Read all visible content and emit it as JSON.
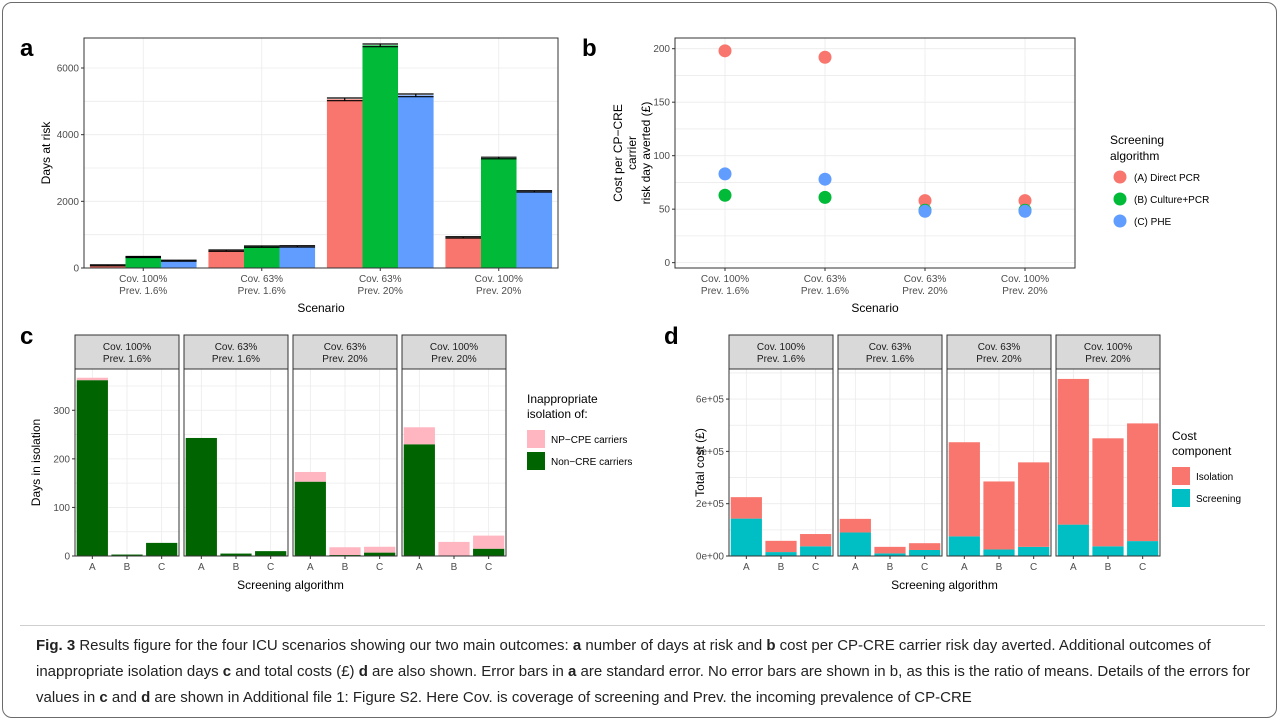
{
  "figure": {
    "caption": {
      "label": "Fig. 3",
      "text": "Results figure for the four ICU scenarios showing our two main outcomes: a number of days at risk and b cost per CP-CRE carrier risk day averted. Additional outcomes of inappropriate isolation days c and total costs (£) d are also shown. Error bars in a are standard error. No error bars are shown in b, as this is the ratio of means. Details of the errors for values in c and d are shown in Additional file 1: Figure S2. Here Cov. is coverage of screening and Prev. the incoming prevalence of CP-CRE"
    }
  },
  "colors": {
    "A": "#F8766D",
    "B": "#00BA38",
    "C": "#619CFF",
    "np_cpe": "#FFB6C1",
    "non_cre": "#006400",
    "isolation": "#F8766D",
    "screening": "#00BFC4",
    "grid": "#EBEBEB",
    "strip": "#D9D9D9"
  },
  "chart_data": [
    {
      "panel": "a",
      "type": "bar",
      "xlabel": "Scenario",
      "ylabel": "Days at risk",
      "ylim": [
        0,
        6900
      ],
      "yticks": [
        0,
        2000,
        4000,
        6000
      ],
      "categories": [
        [
          "Cov. 100%",
          "Prev. 1.6%"
        ],
        [
          "Cov. 63%",
          "Prev. 1.6%"
        ],
        [
          "Cov. 63%",
          "Prev. 20%"
        ],
        [
          "Cov. 100%",
          "Prev. 20%"
        ]
      ],
      "series": [
        {
          "key": "A",
          "values": [
            80,
            520,
            5060,
            920
          ],
          "err": [
            15,
            20,
            40,
            20
          ]
        },
        {
          "key": "B",
          "values": [
            330,
            640,
            6680,
            3300
          ],
          "err": [
            15,
            20,
            40,
            25
          ]
        },
        {
          "key": "C",
          "values": [
            220,
            650,
            5180,
            2300
          ],
          "err": [
            15,
            20,
            40,
            20
          ]
        }
      ]
    },
    {
      "panel": "b",
      "type": "scatter",
      "xlabel": "Scenario",
      "ylabel": [
        "Cost per CP−CRE",
        "carrier",
        "risk day averted (£)"
      ],
      "ylim": [
        -5,
        210
      ],
      "yticks": [
        0,
        50,
        100,
        150,
        200
      ],
      "categories": [
        [
          "Cov. 100%",
          "Prev. 1.6%"
        ],
        [
          "Cov. 63%",
          "Prev. 1.6%"
        ],
        [
          "Cov. 63%",
          "Prev. 20%"
        ],
        [
          "Cov. 100%",
          "Prev. 20%"
        ]
      ],
      "legend_title": [
        "Screening",
        "algorithm"
      ],
      "series": [
        {
          "key": "A",
          "name": "(A) Direct PCR",
          "values": [
            198,
            192,
            58,
            58
          ]
        },
        {
          "key": "B",
          "name": "(B) Culture+PCR",
          "values": [
            63,
            61,
            49,
            49
          ]
        },
        {
          "key": "C",
          "name": "(C) PHE",
          "values": [
            83,
            78,
            48,
            48
          ]
        }
      ]
    },
    {
      "panel": "c",
      "type": "bar",
      "stacked": true,
      "xlabel": "Screening algorithm",
      "ylabel": "Days in isolation",
      "ylim": [
        0,
        385
      ],
      "yticks": [
        0,
        100,
        200,
        300
      ],
      "x": [
        "A",
        "B",
        "C"
      ],
      "legend_title": [
        "Inappropriate",
        "isolation of:"
      ],
      "legend": [
        {
          "key": "np_cpe",
          "name": "NP−CPE carriers"
        },
        {
          "key": "non_cre",
          "name": "Non−CRE carriers"
        }
      ],
      "facets": [
        {
          "strip": [
            "Cov. 100%",
            "Prev. 1.6%"
          ],
          "non_cre": [
            362,
            3,
            27
          ],
          "np_cpe": [
            5,
            0,
            0
          ]
        },
        {
          "strip": [
            "Cov. 63%",
            "Prev. 1.6%"
          ],
          "non_cre": [
            243,
            5,
            10
          ],
          "np_cpe": [
            0,
            0,
            0
          ]
        },
        {
          "strip": [
            "Cov. 63%",
            "Prev. 20%"
          ],
          "non_cre": [
            153,
            2,
            7
          ],
          "np_cpe": [
            20,
            16,
            12
          ]
        },
        {
          "strip": [
            "Cov. 100%",
            "Prev. 20%"
          ],
          "non_cre": [
            230,
            0,
            15
          ],
          "np_cpe": [
            35,
            29,
            27
          ]
        }
      ]
    },
    {
      "panel": "d",
      "type": "bar",
      "stacked": true,
      "xlabel": "Screening algorithm",
      "ylabel": "Total cost (£)",
      "ylim": [
        0,
        715000
      ],
      "yticks": [
        0,
        200000,
        400000,
        600000
      ],
      "yticklabels": [
        "0e+00",
        "2e+05",
        "4e+05",
        "6e+05"
      ],
      "x": [
        "A",
        "B",
        "C"
      ],
      "legend_title": [
        "Cost",
        "component"
      ],
      "legend": [
        {
          "key": "isolation",
          "name": "Isolation"
        },
        {
          "key": "screening",
          "name": "Screening"
        }
      ],
      "facets": [
        {
          "strip": [
            "Cov. 100%",
            "Prev. 1.6%"
          ],
          "screening": [
            143000,
            15000,
            37000
          ],
          "isolation": [
            82000,
            43000,
            47000
          ]
        },
        {
          "strip": [
            "Cov. 63%",
            "Prev. 1.6%"
          ],
          "screening": [
            90000,
            10000,
            23000
          ],
          "isolation": [
            52000,
            25000,
            26000
          ]
        },
        {
          "strip": [
            "Cov. 63%",
            "Prev. 20%"
          ],
          "screening": [
            75000,
            25000,
            35000
          ],
          "isolation": [
            360000,
            260000,
            323000
          ]
        },
        {
          "strip": [
            "Cov. 100%",
            "Prev. 20%"
          ],
          "screening": [
            120000,
            37000,
            57000
          ],
          "isolation": [
            557000,
            413000,
            450000
          ]
        }
      ]
    }
  ]
}
